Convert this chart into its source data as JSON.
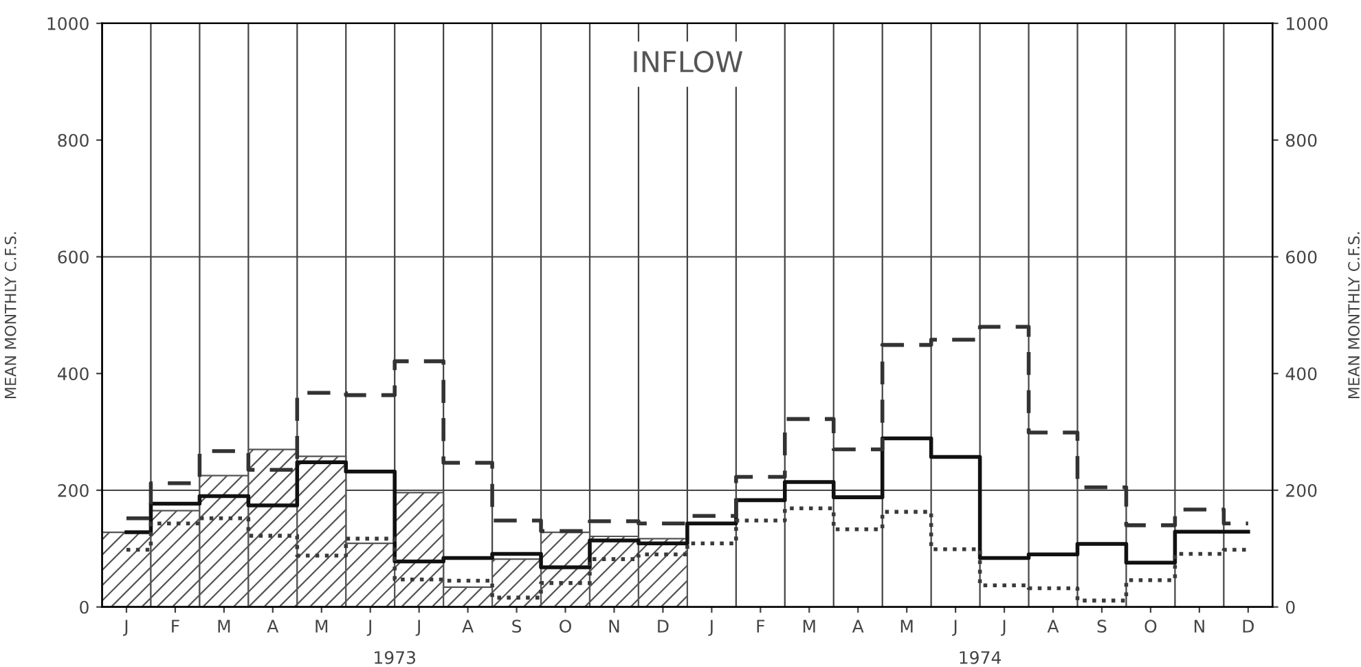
{
  "chart_data": {
    "type": "bar",
    "title": "INFLOW",
    "ylabel": "MEAN MONTHLY C.F.S.",
    "y2label": "MEAN MONTHLY C.F.S.",
    "categories": [
      "J",
      "F",
      "M",
      "A",
      "M",
      "J",
      "J",
      "A",
      "S",
      "O",
      "N",
      "D",
      "J",
      "F",
      "M",
      "A",
      "M",
      "J",
      "J",
      "A",
      "S",
      "O",
      "N",
      "D"
    ],
    "series": [
      {
        "color": "#555555",
        "values": [
          128,
          165,
          225,
          270,
          258,
          109,
          196,
          34,
          82,
          128,
          121,
          117,
          null,
          null,
          null,
          null,
          null,
          null,
          null,
          null,
          null,
          null,
          null,
          null
        ]
      },
      {
        "type": "step",
        "color": "#111111",
        "line_style": "solid",
        "values": [
          128,
          177,
          190,
          174,
          248,
          232,
          78,
          84,
          91,
          68,
          114,
          109,
          143,
          183,
          214,
          188,
          289,
          257,
          84,
          90,
          108,
          76,
          129,
          129
        ]
      },
      {
        "type": "step",
        "color": "#333333",
        "line_style": "dashed",
        "values": [
          152,
          212,
          267,
          235,
          367,
          363,
          421,
          247,
          148,
          130,
          147,
          143,
          156,
          223,
          322,
          270,
          449,
          458,
          480,
          299,
          205,
          140,
          167,
          143
        ]
      },
      {
        "type": "step",
        "color": "#3a3a3a",
        "line_style": "dotted",
        "values": [
          98,
          143,
          152,
          122,
          88,
          117,
          47,
          45,
          16,
          41,
          82,
          90,
          109,
          148,
          169,
          133,
          163,
          99,
          37,
          32,
          11,
          46,
          91,
          98
        ]
      }
    ],
    "ylim": [
      0,
      1000
    ],
    "yticks": [
      0,
      200,
      400,
      600,
      800,
      1000
    ],
    "y2lim": [
      0,
      1000
    ],
    "y2ticks": [
      0,
      200,
      400,
      600,
      800,
      1000
    ],
    "grid": "x",
    "ref_lines": [
      {
        "axis": "y",
        "value": 200,
        "label": null
      },
      {
        "axis": "y",
        "value": 600,
        "label": null
      }
    ],
    "annotations": [
      "1973",
      "1974"
    ]
  }
}
